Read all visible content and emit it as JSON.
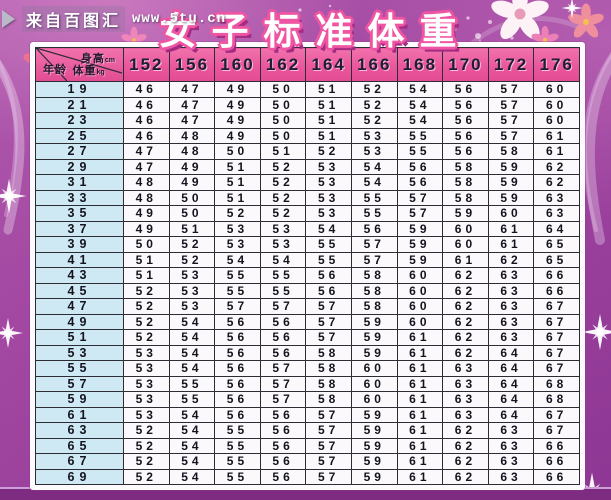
{
  "title": "女子标准体重",
  "watermark": {
    "source": "来自百图汇",
    "url": "www.5tu.cn"
  },
  "chart_data": {
    "type": "table",
    "title": "女子标准体重",
    "corner": {
      "col_label": "身高",
      "col_unit": "cm",
      "cell_label": "体重",
      "cell_unit": "kg",
      "row_label": "年龄"
    },
    "columns": [
      152,
      156,
      160,
      162,
      164,
      166,
      168,
      170,
      172,
      176
    ],
    "rows": [
      {
        "age": 19,
        "values": [
          46,
          47,
          49,
          50,
          51,
          52,
          54,
          56,
          57,
          60
        ]
      },
      {
        "age": 21,
        "values": [
          46,
          47,
          49,
          50,
          51,
          52,
          54,
          56,
          57,
          60
        ]
      },
      {
        "age": 23,
        "values": [
          46,
          47,
          49,
          50,
          51,
          52,
          54,
          56,
          57,
          60
        ]
      },
      {
        "age": 25,
        "values": [
          46,
          48,
          49,
          50,
          51,
          53,
          55,
          56,
          57,
          61
        ]
      },
      {
        "age": 27,
        "values": [
          47,
          48,
          50,
          51,
          52,
          53,
          55,
          56,
          58,
          61
        ]
      },
      {
        "age": 29,
        "values": [
          47,
          49,
          51,
          52,
          53,
          54,
          56,
          58,
          59,
          62
        ]
      },
      {
        "age": 31,
        "values": [
          48,
          49,
          51,
          52,
          53,
          54,
          56,
          58,
          59,
          62
        ]
      },
      {
        "age": 33,
        "values": [
          48,
          50,
          51,
          52,
          53,
          55,
          57,
          58,
          59,
          63
        ]
      },
      {
        "age": 35,
        "values": [
          49,
          50,
          52,
          52,
          53,
          55,
          57,
          59,
          60,
          63
        ]
      },
      {
        "age": 37,
        "values": [
          49,
          51,
          53,
          53,
          54,
          56,
          59,
          60,
          61,
          64
        ]
      },
      {
        "age": 39,
        "values": [
          50,
          52,
          53,
          53,
          55,
          57,
          59,
          60,
          61,
          65
        ]
      },
      {
        "age": 41,
        "values": [
          51,
          52,
          54,
          54,
          55,
          57,
          59,
          61,
          62,
          65
        ]
      },
      {
        "age": 43,
        "values": [
          51,
          53,
          55,
          55,
          56,
          58,
          60,
          62,
          63,
          66
        ]
      },
      {
        "age": 45,
        "values": [
          52,
          53,
          55,
          55,
          56,
          58,
          60,
          62,
          63,
          66
        ]
      },
      {
        "age": 47,
        "values": [
          52,
          53,
          57,
          57,
          57,
          58,
          60,
          62,
          63,
          67
        ]
      },
      {
        "age": 49,
        "values": [
          52,
          54,
          56,
          56,
          57,
          59,
          60,
          62,
          63,
          67
        ]
      },
      {
        "age": 51,
        "values": [
          52,
          54,
          56,
          56,
          57,
          59,
          61,
          62,
          63,
          67
        ]
      },
      {
        "age": 53,
        "values": [
          53,
          54,
          56,
          56,
          58,
          59,
          61,
          62,
          64,
          67
        ]
      },
      {
        "age": 55,
        "values": [
          53,
          54,
          56,
          57,
          58,
          60,
          61,
          63,
          64,
          67
        ]
      },
      {
        "age": 57,
        "values": [
          53,
          55,
          56,
          57,
          58,
          60,
          61,
          63,
          64,
          68
        ]
      },
      {
        "age": 59,
        "values": [
          53,
          55,
          56,
          57,
          58,
          60,
          61,
          63,
          64,
          68
        ]
      },
      {
        "age": 61,
        "values": [
          53,
          54,
          56,
          56,
          57,
          59,
          61,
          63,
          64,
          67
        ]
      },
      {
        "age": 63,
        "values": [
          52,
          54,
          55,
          56,
          57,
          59,
          61,
          62,
          63,
          67
        ]
      },
      {
        "age": 65,
        "values": [
          52,
          54,
          55,
          56,
          57,
          59,
          61,
          62,
          63,
          66
        ]
      },
      {
        "age": 67,
        "values": [
          52,
          54,
          55,
          56,
          57,
          59,
          61,
          62,
          63,
          66
        ]
      },
      {
        "age": 69,
        "values": [
          52,
          54,
          55,
          56,
          57,
          59,
          61,
          62,
          63,
          66
        ]
      }
    ]
  },
  "colors": {
    "background": "#9c429e",
    "header_pink": "#e85a9c",
    "age_column_blue": "#cfe9f4",
    "cell_white": "#fbf9fb",
    "title_outline": "#ee55a2",
    "bottom_band": "#7e2c82"
  }
}
